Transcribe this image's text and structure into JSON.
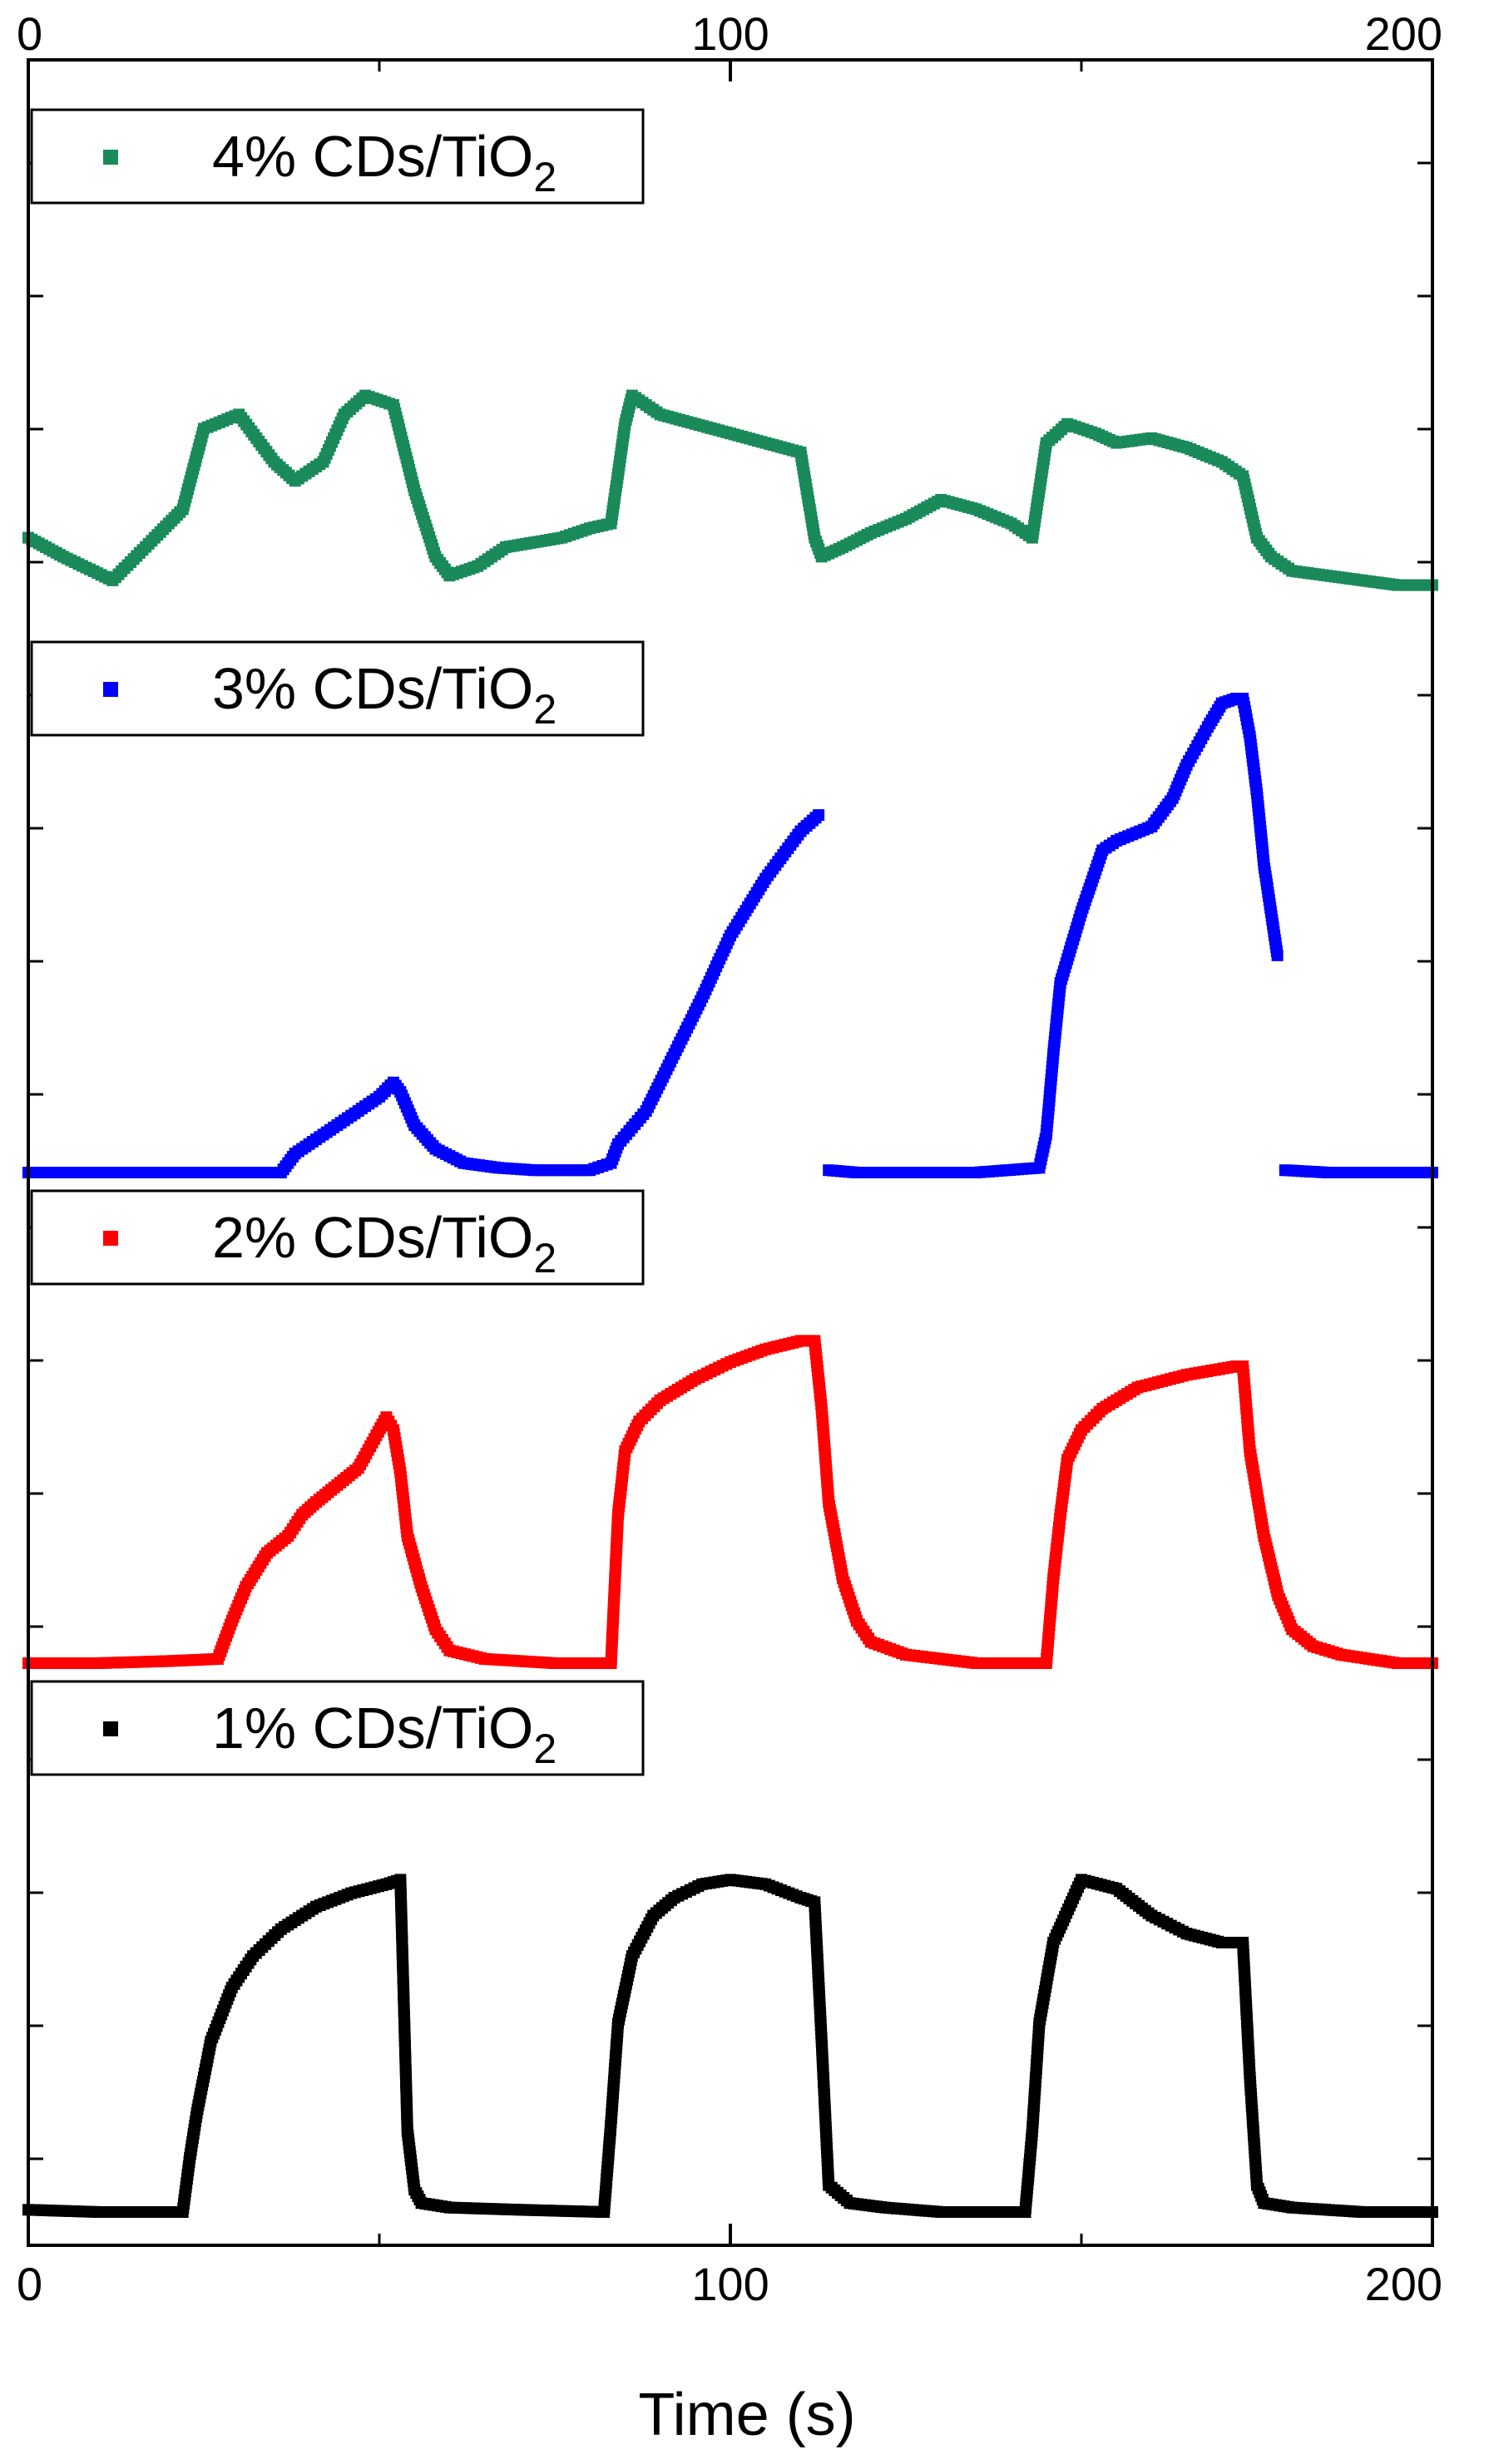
{
  "chart_data": {
    "type": "scatter",
    "xlabel": "Time (s)",
    "ylabel": "",
    "xlim": [
      0,
      200
    ],
    "x_ticks": [
      0,
      100,
      200
    ],
    "x_tick_labels_bottom": [
      "0",
      "100",
      "200"
    ],
    "x_tick_labels_top": [
      "0",
      "100",
      "200"
    ],
    "y_tick_labels": "none",
    "grid": false,
    "legend_placement": "top-left of each stacked panel",
    "panels": [
      {
        "legend_prefix": "4% CDs/TiO",
        "legend_subscript": "2",
        "color": "#1a8a5a",
        "ylim": [
          0,
          1
        ],
        "x": [
          0,
          5,
          12,
          18,
          22,
          25,
          30,
          35,
          38,
          42,
          45,
          48,
          52,
          55,
          58,
          60,
          64,
          68,
          72,
          76,
          80,
          83,
          85,
          86,
          90,
          95,
          100,
          105,
          110,
          112,
          113,
          116,
          120,
          125,
          130,
          135,
          140,
          143,
          145,
          148,
          152,
          155,
          160,
          165,
          170,
          173,
          175,
          177,
          180,
          185,
          190,
          195,
          200
        ],
        "y": [
          0.22,
          0.18,
          0.13,
          0.22,
          0.28,
          0.45,
          0.48,
          0.38,
          0.34,
          0.38,
          0.48,
          0.52,
          0.5,
          0.32,
          0.18,
          0.14,
          0.16,
          0.2,
          0.21,
          0.22,
          0.24,
          0.25,
          0.46,
          0.52,
          0.48,
          0.46,
          0.44,
          0.42,
          0.4,
          0.22,
          0.18,
          0.2,
          0.23,
          0.26,
          0.3,
          0.28,
          0.25,
          0.22,
          0.42,
          0.46,
          0.44,
          0.42,
          0.43,
          0.41,
          0.38,
          0.35,
          0.22,
          0.18,
          0.15,
          0.14,
          0.13,
          0.12,
          0.12
        ]
      },
      {
        "legend_prefix": "3% CDs/TiO",
        "legend_subscript": "2",
        "color": "#0000ff",
        "ylim": [
          0,
          1
        ],
        "x": [
          0,
          36,
          38,
          42,
          46,
          50,
          52,
          53,
          55,
          58,
          62,
          67,
          72,
          80,
          83,
          84,
          88,
          92,
          96,
          100,
          105,
          110,
          113,
          114,
          118,
          125,
          135,
          144,
          145,
          146,
          147,
          150,
          153,
          155,
          160,
          163,
          165,
          168,
          170,
          172,
          173,
          174,
          175,
          176,
          177,
          178,
          179,
          185,
          195,
          200
        ],
        "y": [
          0.0,
          0.0,
          0.04,
          0.08,
          0.12,
          0.16,
          0.19,
          0.17,
          0.1,
          0.05,
          0.02,
          0.01,
          0.005,
          0.005,
          0.02,
          0.06,
          0.13,
          0.25,
          0.37,
          0.5,
          0.62,
          0.72,
          0.76,
          0.005,
          0.0,
          0.0,
          0.0,
          0.01,
          0.08,
          0.25,
          0.4,
          0.55,
          0.68,
          0.7,
          0.73,
          0.79,
          0.86,
          0.94,
          0.99,
          1.0,
          1.0,
          0.92,
          0.8,
          0.65,
          0.55,
          0.45,
          0.005,
          0.0,
          0.0,
          0.0
        ],
        "break_before_index": [
          23,
          46
        ]
      },
      {
        "legend_prefix": "2% CDs/TiO",
        "legend_subscript": "2",
        "color": "#ff0000",
        "ylim": [
          0,
          1
        ],
        "x": [
          0,
          10,
          20,
          27,
          29,
          31,
          34,
          37,
          39,
          41,
          44,
          47,
          49,
          51,
          52,
          53,
          54,
          56,
          58,
          60,
          65,
          75,
          83,
          84,
          85,
          87,
          90,
          95,
          100,
          105,
          110,
          112,
          113,
          114,
          116,
          118,
          120,
          125,
          135,
          145,
          146,
          147,
          148,
          150,
          153,
          158,
          165,
          172,
          173,
          174,
          176,
          178,
          180,
          183,
          187,
          195,
          200
        ],
        "y": [
          0.0,
          0.0,
          0.005,
          0.01,
          0.1,
          0.18,
          0.26,
          0.3,
          0.35,
          0.38,
          0.42,
          0.46,
          0.52,
          0.58,
          0.55,
          0.45,
          0.3,
          0.18,
          0.08,
          0.03,
          0.01,
          0.0,
          0.0,
          0.35,
          0.5,
          0.57,
          0.62,
          0.67,
          0.71,
          0.74,
          0.76,
          0.76,
          0.6,
          0.38,
          0.2,
          0.1,
          0.05,
          0.02,
          0.0,
          0.0,
          0.2,
          0.35,
          0.48,
          0.55,
          0.6,
          0.65,
          0.68,
          0.7,
          0.7,
          0.5,
          0.3,
          0.16,
          0.08,
          0.04,
          0.02,
          0.0,
          0.0
        ]
      },
      {
        "legend_prefix": "1% CDs/TiO",
        "legend_subscript": "2",
        "color": "#000000",
        "ylim": [
          0,
          1
        ],
        "x": [
          0,
          10,
          20,
          22,
          23,
          24,
          26,
          29,
          32,
          36,
          41,
          46,
          51,
          53,
          54,
          55,
          56,
          60,
          70,
          82,
          83,
          84,
          86,
          89,
          92,
          96,
          100,
          105,
          110,
          112,
          113,
          114,
          117,
          122,
          130,
          142,
          143,
          144,
          146,
          150,
          155,
          160,
          165,
          170,
          173,
          174,
          175,
          176,
          180,
          190,
          200
        ],
        "y": [
          0.005,
          0.0,
          0.0,
          0.0,
          0.12,
          0.22,
          0.38,
          0.5,
          0.57,
          0.63,
          0.68,
          0.71,
          0.73,
          0.74,
          0.18,
          0.05,
          0.02,
          0.01,
          0.005,
          0.0,
          0.2,
          0.42,
          0.57,
          0.66,
          0.7,
          0.73,
          0.74,
          0.73,
          0.7,
          0.69,
          0.38,
          0.06,
          0.02,
          0.01,
          0.0,
          0.0,
          0.18,
          0.42,
          0.6,
          0.74,
          0.72,
          0.66,
          0.62,
          0.6,
          0.6,
          0.3,
          0.06,
          0.02,
          0.01,
          0.0,
          0.0
        ]
      }
    ]
  }
}
